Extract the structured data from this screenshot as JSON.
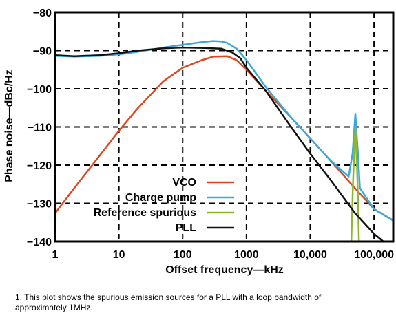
{
  "chart_data": {
    "type": "line",
    "xlabel": "Offset frequency—kHz",
    "ylabel": "Phase noise—dBc/Hz",
    "x_scale": "log",
    "xlim": [
      1,
      200000
    ],
    "ylim": [
      -140,
      -80
    ],
    "x_ticks": [
      1,
      10,
      100,
      1000,
      10000,
      100000
    ],
    "x_tick_labels": [
      "1",
      "10",
      "100",
      "1000",
      "10,000",
      "100,000"
    ],
    "y_ticks": [
      -80,
      -90,
      -100,
      -110,
      -120,
      -130,
      -140
    ],
    "y_tick_labels": [
      "−80",
      "−90",
      "−100",
      "−110",
      "−120",
      "−130",
      "−140"
    ],
    "grid": "dashed",
    "legend_position": "bottom-center",
    "series": [
      {
        "name": "VCO",
        "color": "#e0451f",
        "points": [
          [
            1,
            -132.6
          ],
          [
            2,
            -126
          ],
          [
            5,
            -117.5
          ],
          [
            10,
            -111
          ],
          [
            20,
            -105
          ],
          [
            50,
            -98
          ],
          [
            100,
            -94.5
          ],
          [
            200,
            -92.5
          ],
          [
            300,
            -91.6
          ],
          [
            500,
            -91.5
          ],
          [
            700,
            -92.5
          ],
          [
            1000,
            -95
          ],
          [
            2000,
            -100.5
          ],
          [
            5000,
            -107.5
          ],
          [
            10000,
            -113
          ],
          [
            20000,
            -118.5
          ],
          [
            50000,
            -126
          ],
          [
            100000,
            -131.5
          ],
          [
            200000,
            -134.5
          ]
        ]
      },
      {
        "name": "Charge pump",
        "color": "#3aa8e0",
        "points": [
          [
            1,
            -91.4
          ],
          [
            2,
            -91.6
          ],
          [
            5,
            -91.4
          ],
          [
            10,
            -91
          ],
          [
            20,
            -90.3
          ],
          [
            50,
            -89.2
          ],
          [
            100,
            -88.5
          ],
          [
            200,
            -87.8
          ],
          [
            300,
            -87.5
          ],
          [
            400,
            -87.6
          ],
          [
            500,
            -88
          ],
          [
            700,
            -89.5
          ],
          [
            1000,
            -92.5
          ],
          [
            2000,
            -99.5
          ],
          [
            5000,
            -107.5
          ],
          [
            10000,
            -113
          ],
          [
            20000,
            -118.5
          ],
          [
            40000,
            -123
          ],
          [
            46000,
            -117
          ],
          [
            51000,
            -106.5
          ],
          [
            56000,
            -117
          ],
          [
            60000,
            -126
          ],
          [
            100000,
            -131.5
          ],
          [
            200000,
            -134.5
          ]
        ]
      },
      {
        "name": "Reference spurious",
        "color": "#8db82e",
        "points": [
          [
            44000,
            -140
          ],
          [
            47000,
            -124
          ],
          [
            51000,
            -110
          ],
          [
            55000,
            -124
          ],
          [
            58000,
            -140
          ]
        ]
      },
      {
        "name": "PLL",
        "color": "#111111",
        "points": [
          [
            1,
            -91.2
          ],
          [
            2,
            -91.5
          ],
          [
            5,
            -91.2
          ],
          [
            10,
            -90.7
          ],
          [
            20,
            -90
          ],
          [
            50,
            -89.4
          ],
          [
            100,
            -89.2
          ],
          [
            200,
            -89.3
          ],
          [
            400,
            -89.5
          ],
          [
            600,
            -90.5
          ],
          [
            800,
            -92
          ],
          [
            1000,
            -94.5
          ],
          [
            2000,
            -100.5
          ],
          [
            5000,
            -110
          ],
          [
            10000,
            -117
          ],
          [
            20000,
            -123.5
          ],
          [
            50000,
            -132.5
          ],
          [
            100000,
            -138
          ],
          [
            140000,
            -140
          ]
        ]
      }
    ]
  },
  "caption": "1. This plot shows the spurious emission sources for a PLL with a loop bandwidth of approximately 1MHz."
}
